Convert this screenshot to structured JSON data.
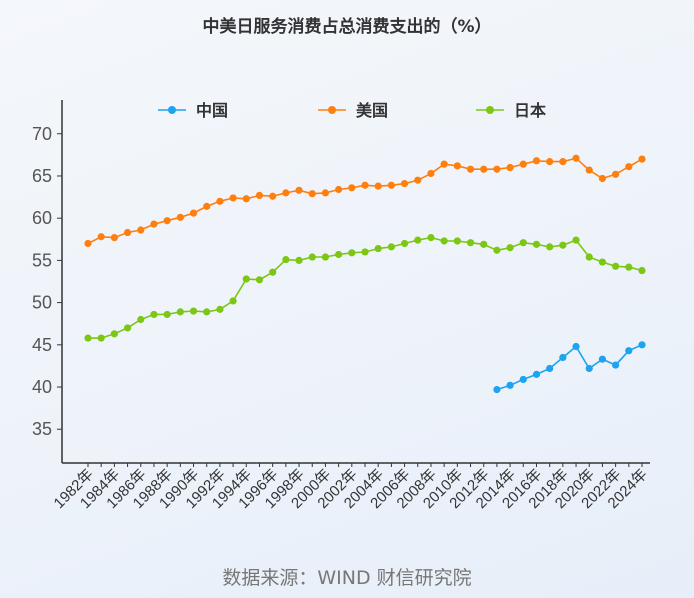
{
  "title": "中美日服务消费占总消费支出的（%）",
  "source": "数据来源：WIND 财信研究院",
  "chart_data": {
    "type": "line",
    "title": "中美日服务消费占总消费支出的（%）",
    "xlabel": "",
    "ylabel": "",
    "ylim": [
      31,
      74
    ],
    "yticks": [
      35,
      40,
      45,
      50,
      55,
      60,
      65,
      70
    ],
    "x": [
      1982,
      1983,
      1984,
      1985,
      1986,
      1987,
      1988,
      1989,
      1990,
      1991,
      1992,
      1993,
      1994,
      1995,
      1996,
      1997,
      1998,
      1999,
      2000,
      2001,
      2002,
      2003,
      2004,
      2005,
      2006,
      2007,
      2008,
      2009,
      2010,
      2011,
      2012,
      2013,
      2014,
      2015,
      2016,
      2017,
      2018,
      2019,
      2020,
      2021,
      2022,
      2023,
      2024
    ],
    "xtick_labels": [
      "1982年",
      "1984年",
      "1986年",
      "1988年",
      "1990年",
      "1992年",
      "1994年",
      "1996年",
      "1998年",
      "2000年",
      "2002年",
      "2004年",
      "2006年",
      "2008年",
      "2010年",
      "2012年",
      "2014年",
      "2016年",
      "2018年",
      "2020年",
      "2022年",
      "2024年"
    ],
    "legend_position": "top",
    "grid": false,
    "series": [
      {
        "name": "中国",
        "color": "#1ea3f0",
        "values": [
          null,
          null,
          null,
          null,
          null,
          null,
          null,
          null,
          null,
          null,
          null,
          null,
          null,
          null,
          null,
          null,
          null,
          null,
          null,
          null,
          null,
          null,
          null,
          null,
          null,
          null,
          null,
          null,
          null,
          null,
          null,
          39.7,
          40.2,
          40.9,
          41.5,
          42.2,
          43.5,
          44.8,
          42.2,
          43.3,
          42.6,
          44.3,
          45.0
        ]
      },
      {
        "name": "美国",
        "color": "#ff7f0e",
        "values": [
          57.0,
          57.8,
          57.7,
          58.3,
          58.6,
          59.3,
          59.7,
          60.1,
          60.6,
          61.4,
          62.0,
          62.4,
          62.3,
          62.7,
          62.6,
          63.0,
          63.3,
          62.9,
          63.0,
          63.4,
          63.6,
          63.9,
          63.8,
          63.9,
          64.1,
          64.5,
          65.3,
          66.4,
          66.2,
          65.8,
          65.8,
          65.8,
          66.0,
          66.4,
          66.8,
          66.7,
          66.7,
          67.1,
          65.7,
          64.7,
          65.2,
          66.1,
          67.0
        ]
      },
      {
        "name": "日本",
        "color": "#7cc614",
        "values": [
          45.8,
          45.8,
          46.3,
          47.0,
          48.0,
          48.6,
          48.6,
          48.9,
          49.0,
          48.9,
          49.2,
          50.2,
          52.8,
          52.7,
          53.6,
          55.1,
          55.0,
          55.4,
          55.4,
          55.7,
          55.9,
          56.0,
          56.4,
          56.6,
          57.0,
          57.4,
          57.7,
          57.3,
          57.3,
          57.1,
          56.9,
          56.2,
          56.5,
          57.1,
          56.9,
          56.6,
          56.8,
          57.4,
          55.4,
          54.8,
          54.3,
          54.2,
          53.8
        ]
      }
    ]
  }
}
